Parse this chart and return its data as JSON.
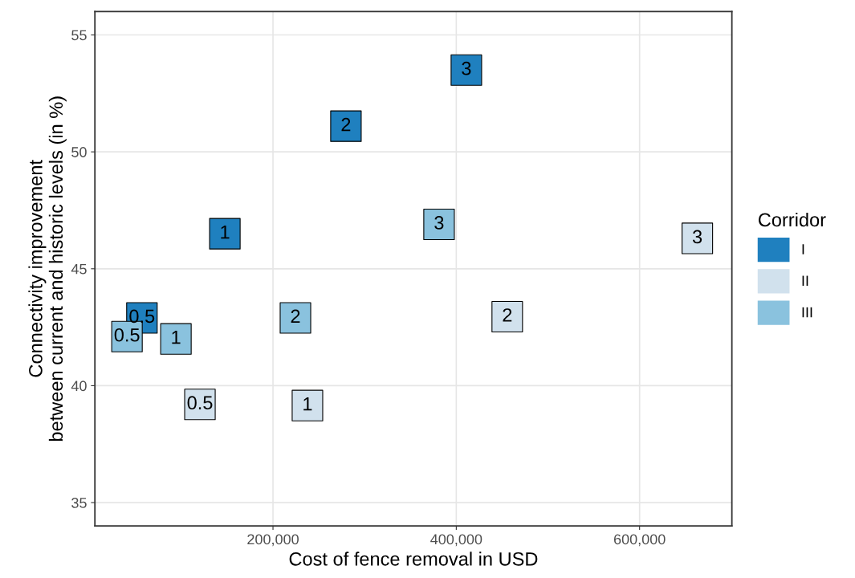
{
  "chart_data": {
    "type": "scatter",
    "xlabel": "Cost of fence removal in USD",
    "ylabel": "Connectivity improvement\nbetween current and historic levels (in %)",
    "legend_title": "Corridor",
    "xlim": [
      5700,
      700700
    ],
    "ylim": [
      34.0,
      56.0
    ],
    "xticks": [
      {
        "value": 200000,
        "label": "200,000"
      },
      {
        "value": 400000,
        "label": "400,000"
      },
      {
        "value": 600000,
        "label": "600,000"
      }
    ],
    "yticks": [
      35,
      40,
      45,
      50,
      55
    ],
    "grid": true,
    "legend": "right",
    "marker": "square",
    "series": [
      {
        "name": "I",
        "color": "#1f80bf",
        "x": [
          57000,
          147500,
          279600,
          411000
        ],
        "values": [
          42.9,
          46.5,
          51.1,
          53.5
        ]
      },
      {
        "name": "II",
        "color": "#d1e1ed",
        "x": [
          120300,
          237600,
          455600,
          663000
        ],
        "values": [
          39.2,
          39.15,
          42.95,
          46.3
        ]
      },
      {
        "name": "III",
        "color": "#8ac2de",
        "x": [
          40700,
          94100,
          224500,
          381200
        ],
        "values": [
          42.1,
          42.0,
          42.9,
          46.9
        ]
      }
    ],
    "annotations": [
      {
        "text": "0.5",
        "x": 57000,
        "y": 42.9
      },
      {
        "text": "1",
        "x": 147500,
        "y": 46.5
      },
      {
        "text": "2",
        "x": 279600,
        "y": 51.1
      },
      {
        "text": "3",
        "x": 411000,
        "y": 53.5
      },
      {
        "text": "0.5",
        "x": 120300,
        "y": 39.2
      },
      {
        "text": "1",
        "x": 237600,
        "y": 39.15
      },
      {
        "text": "2",
        "x": 455600,
        "y": 42.95
      },
      {
        "text": "3",
        "x": 663000,
        "y": 46.3
      },
      {
        "text": "0.5",
        "x": 40700,
        "y": 42.1
      },
      {
        "text": "1",
        "x": 94100,
        "y": 42.0
      },
      {
        "text": "2",
        "x": 224500,
        "y": 42.9
      },
      {
        "text": "3",
        "x": 381200,
        "y": 46.9
      }
    ]
  }
}
